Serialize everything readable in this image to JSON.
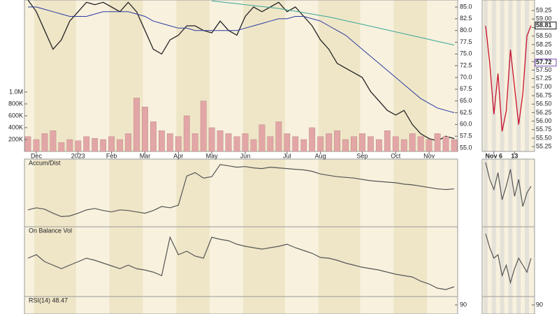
{
  "chart_data": [
    {
      "type": "line",
      "categories": [
        null,
        "Dec",
        null,
        null,
        null,
        null,
        "2023",
        null,
        null,
        null,
        "Feb",
        null,
        null,
        null,
        "Mar",
        null,
        null,
        null,
        "Apr",
        null,
        null,
        null,
        "May",
        null,
        null,
        null,
        "Jun",
        null,
        null,
        null,
        null,
        "Jul",
        null,
        null,
        null,
        "Aug",
        null,
        null,
        null,
        null,
        "Sep",
        null,
        null,
        null,
        "Oct",
        null,
        null,
        null,
        "Nov",
        null,
        null,
        null
      ],
      "series": [
        {
          "color": "#222222",
          "values": [
            86.5,
            84,
            80,
            76,
            78,
            82,
            84,
            86,
            85.5,
            86,
            85,
            84,
            86,
            84,
            80,
            76,
            75,
            78,
            79,
            81,
            81,
            80,
            79.5,
            82,
            80,
            79,
            83,
            85,
            84,
            85,
            86,
            84,
            85,
            83,
            81,
            78,
            76,
            73,
            72,
            71,
            70,
            67,
            65,
            63,
            62,
            63,
            60,
            58,
            57,
            56.5,
            57.5,
            57
          ]
        },
        {
          "color": "#2b3aa0",
          "values": [
            85,
            85,
            84.5,
            84,
            83.5,
            83,
            83,
            83,
            83.5,
            84,
            84,
            84,
            84,
            83.5,
            83,
            82,
            81.5,
            81,
            80.5,
            80.5,
            80,
            80,
            80,
            80,
            80,
            80,
            80.5,
            81,
            81.5,
            82,
            82.5,
            82.5,
            83,
            83,
            82.5,
            82,
            81,
            80,
            79,
            77.5,
            76,
            74.5,
            73,
            71.5,
            70,
            68.5,
            67,
            65.5,
            64.5,
            63.5,
            63,
            62.5
          ]
        },
        {
          "color": "#3aa79a",
          "values": [
            null,
            null,
            null,
            null,
            null,
            null,
            null,
            null,
            null,
            null,
            null,
            null,
            null,
            null,
            null,
            null,
            null,
            null,
            null,
            null,
            null,
            null,
            86.3,
            86.1,
            85.9,
            85.7,
            85.5,
            85.3,
            85.1,
            84.9,
            84.7,
            84.4,
            84.1,
            83.8,
            83.5,
            83.2,
            82.9,
            82.5,
            82.1,
            81.7,
            81.3,
            80.9,
            80.5,
            80.1,
            79.7,
            79.3,
            78.9,
            78.5,
            78.1,
            77.7,
            77.3,
            76.9
          ]
        }
      ],
      "ylim": [
        54.26,
        86.49
      ],
      "yticks": [
        {
          "value": 85,
          "label": "85.0"
        },
        82.5,
        {
          "value": 80,
          "label": "80.0"
        },
        77.5,
        {
          "value": 75,
          "label": "75.0"
        },
        72.5,
        {
          "value": 70,
          "label": "70.0"
        },
        67.5,
        {
          "value": 65,
          "label": "65.0"
        },
        62.5,
        {
          "value": 60,
          "label": "60.0"
        },
        57.5,
        {
          "value": 55,
          "label": "55.0"
        }
      ]
    },
    {
      "type": "bar",
      "color": "#e3a6a6",
      "values": [
        250000,
        200000,
        300000,
        350000,
        150000,
        200000,
        180000,
        250000,
        220000,
        200000,
        250000,
        200000,
        300000,
        900000,
        750000,
        500000,
        350000,
        300000,
        250000,
        600000,
        300000,
        850000,
        400000,
        350000,
        300000,
        250000,
        300000,
        200000,
        450000,
        250000,
        500000,
        300000,
        250000,
        200000,
        400000,
        250000,
        300000,
        350000,
        200000,
        250000,
        300000,
        250000,
        200000,
        350000,
        250000,
        200000,
        300000,
        250000,
        200000,
        300000,
        250000,
        200000
      ],
      "ylim": [
        0,
        2550000
      ],
      "yticks": [
        {
          "value": 1000000,
          "label": "1.0M"
        },
        {
          "value": 800000,
          "label": "800K"
        },
        {
          "value": 600000,
          "label": "600K"
        },
        {
          "value": 400000,
          "label": "400K"
        },
        {
          "value": 200000,
          "label": "200K"
        }
      ]
    },
    {
      "type": "line",
      "title": "Accum/Dist",
      "color": "#555555",
      "ylim": [
        0,
        100
      ],
      "values": [
        25,
        28,
        26,
        20,
        15,
        16,
        20,
        25,
        27,
        24,
        22,
        25,
        24,
        22,
        20,
        24,
        30,
        28,
        32,
        75,
        80,
        72,
        74,
        92,
        90,
        88,
        89,
        87,
        86,
        88,
        87,
        86,
        85,
        84,
        82,
        78,
        76,
        74,
        73,
        72,
        70,
        68,
        67,
        66,
        65,
        63,
        62,
        60,
        58,
        56,
        55,
        56
      ]
    },
    {
      "type": "line",
      "title": "On Balance Vol",
      "color": "#555555",
      "ylim": [
        0,
        100
      ],
      "values": [
        55,
        60,
        50,
        45,
        40,
        45,
        50,
        55,
        52,
        48,
        44,
        40,
        45,
        40,
        38,
        35,
        30,
        85,
        60,
        65,
        58,
        55,
        85,
        82,
        80,
        75,
        72,
        70,
        68,
        70,
        72,
        75,
        70,
        66,
        62,
        56,
        55,
        52,
        48,
        45,
        42,
        40,
        38,
        35,
        32,
        30,
        28,
        22,
        18,
        12,
        10,
        14
      ]
    },
    {
      "type": "line",
      "title": "RSI(14) 48.47",
      "ylim": [
        0,
        100
      ],
      "yticks": [
        90
      ]
    },
    {
      "type": "line",
      "categories": [
        null,
        null,
        "Nov 6",
        null,
        null,
        null,
        null,
        "13",
        null,
        null,
        null,
        null
      ],
      "series": [
        {
          "color": "#c8102e",
          "values": [
            58.8,
            57.7,
            56.2,
            57.4,
            55.7,
            56.3,
            58.1,
            57.0,
            55.9,
            56.8,
            58.5,
            58.81
          ]
        }
      ],
      "ylim": [
        55.11,
        59.56
      ],
      "yticks": [
        59.25,
        {
          "value": 59,
          "label": "59.00"
        },
        58.75,
        {
          "value": 58.5,
          "label": "58.50"
        },
        58.25,
        {
          "value": 58,
          "label": "58.00"
        },
        57.75,
        {
          "value": 57.5,
          "label": "57.50"
        },
        57.25,
        {
          "value": 57,
          "label": "57.00"
        },
        56.75,
        {
          "value": 56.5,
          "label": "56.50"
        },
        56.25,
        {
          "value": 56,
          "label": "56.00"
        },
        55.75,
        {
          "value": 55.5,
          "label": "55.50"
        },
        55.25
      ],
      "price_labels": [
        58.81,
        57.72
      ]
    },
    {
      "type": "line",
      "color": "#555555",
      "ylim": [
        0,
        100
      ],
      "values": [
        95,
        70,
        55,
        80,
        40,
        60,
        85,
        45,
        70,
        30,
        50,
        60
      ]
    },
    {
      "type": "line",
      "color": "#555555",
      "ylim": [
        0,
        100
      ],
      "values": [
        90,
        70,
        55,
        60,
        30,
        45,
        20,
        40,
        55,
        45,
        35,
        55
      ]
    },
    {
      "type": "line",
      "ylim": [
        0,
        100
      ],
      "yticks": [
        90
      ]
    }
  ]
}
